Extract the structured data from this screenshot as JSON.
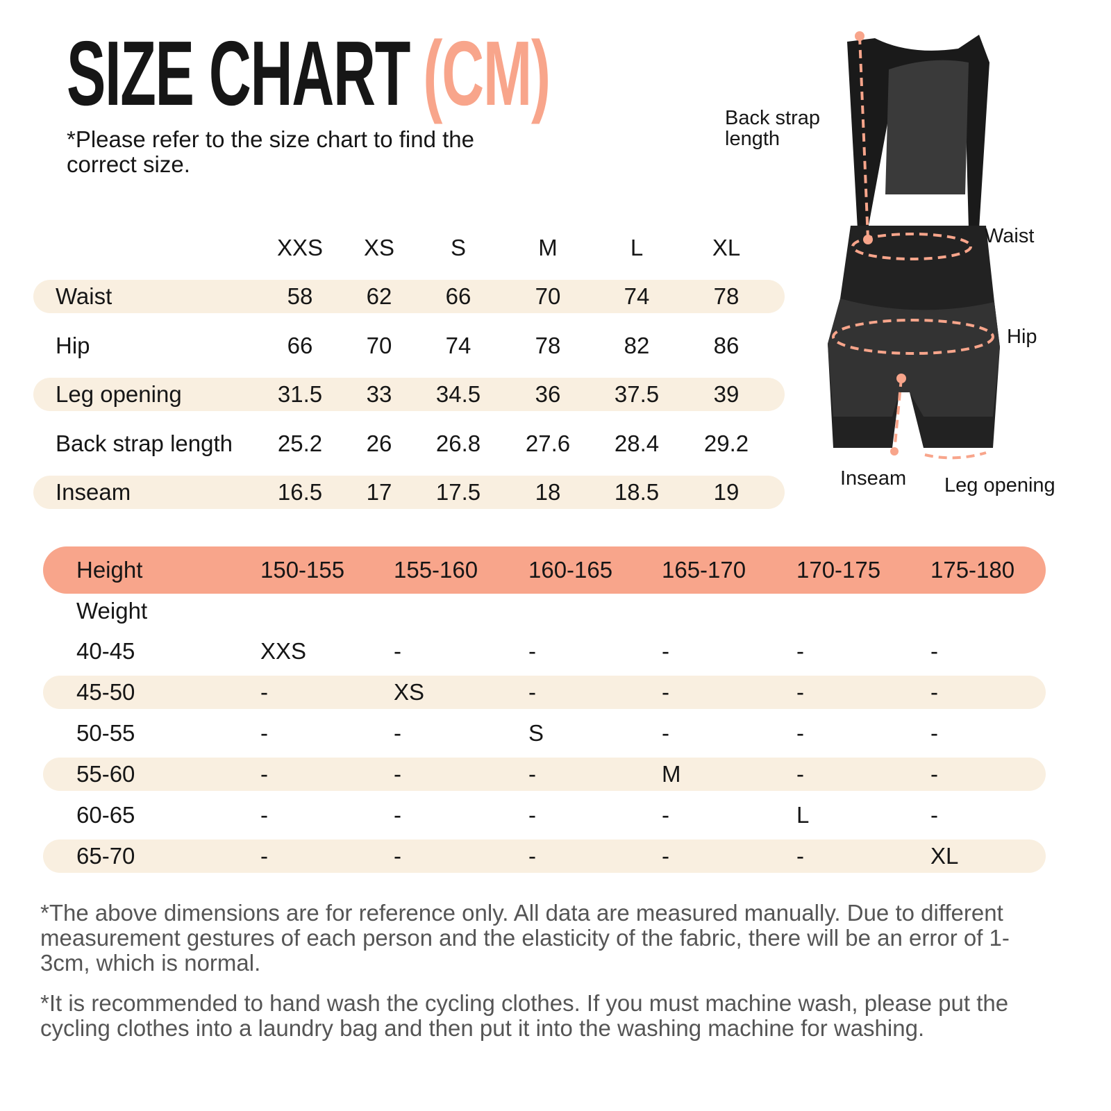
{
  "header": {
    "title": "SIZE CHART",
    "unit": "(CM)",
    "subtitle": "*Please refer to the size chart to find the correct size."
  },
  "colors": {
    "accent": "#f8a58b",
    "band": "#f9efe0",
    "text": "#161616",
    "note": "#555555"
  },
  "measurements": {
    "sizes": [
      "XXS",
      "XS",
      "S",
      "M",
      "L",
      "XL"
    ],
    "rows": [
      {
        "label": "Waist",
        "values": [
          "58",
          "62",
          "66",
          "70",
          "74",
          "78"
        ]
      },
      {
        "label": "Hip",
        "values": [
          "66",
          "70",
          "74",
          "78",
          "82",
          "86"
        ]
      },
      {
        "label": "Leg opening",
        "values": [
          "31.5",
          "33",
          "34.5",
          "36",
          "37.5",
          "39"
        ]
      },
      {
        "label": "Back strap length",
        "values": [
          "25.2",
          "26",
          "26.8",
          "27.6",
          "28.4",
          "29.2"
        ]
      },
      {
        "label": "Inseam",
        "values": [
          "16.5",
          "17",
          "17.5",
          "18",
          "18.5",
          "19"
        ]
      }
    ]
  },
  "diagram": {
    "labels": {
      "back_strap": "Back strap length",
      "waist": "Waist",
      "hip": "Hip",
      "inseam": "Inseam",
      "leg_opening": "Leg opening"
    }
  },
  "fit_table": {
    "height_label": "Height",
    "weight_label": "Weight",
    "heights": [
      "150-155",
      "155-160",
      "160-165",
      "165-170",
      "170-175",
      "175-180"
    ],
    "rows": [
      {
        "weight": "40-45",
        "values": [
          "XXS",
          "-",
          "-",
          "-",
          "-",
          "-"
        ]
      },
      {
        "weight": "45-50",
        "values": [
          "-",
          "XS",
          "-",
          "-",
          "-",
          "-"
        ]
      },
      {
        "weight": "50-55",
        "values": [
          "-",
          "-",
          "S",
          "-",
          "-",
          "-"
        ]
      },
      {
        "weight": "55-60",
        "values": [
          "-",
          "-",
          "-",
          "M",
          "-",
          "-"
        ]
      },
      {
        "weight": "60-65",
        "values": [
          "-",
          "-",
          "-",
          "-",
          "L",
          "-"
        ]
      },
      {
        "weight": "65-70",
        "values": [
          "-",
          "-",
          "-",
          "-",
          "-",
          "XL"
        ]
      }
    ]
  },
  "notes": [
    "*The above dimensions are for reference only. All data are measured manually. Due to different measurement gestures of each person and the elasticity of the fabric, there will be an error of 1-3cm, which is normal.",
    "*It is recommended to hand wash the cycling clothes. If you must machine wash, please put the cycling clothes into a laundry bag and then put it into the washing machine for washing."
  ]
}
